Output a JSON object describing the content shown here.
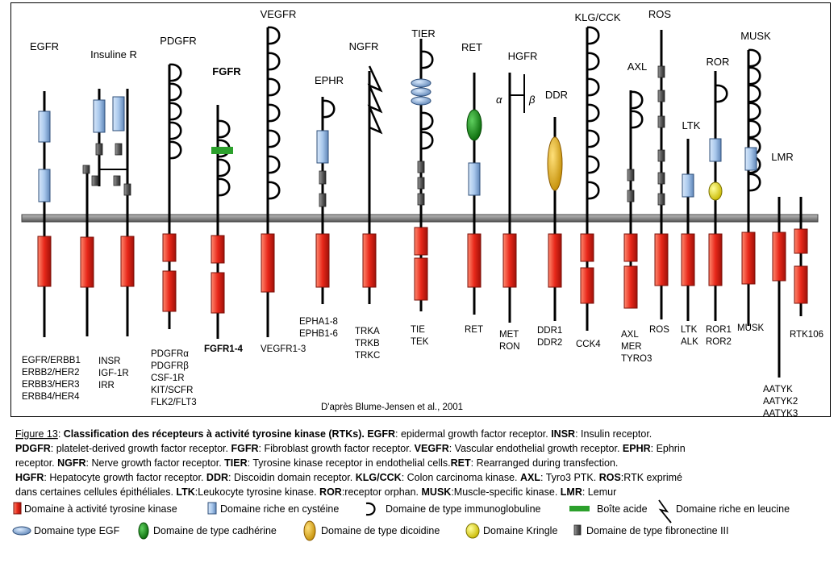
{
  "diagram": {
    "receptors": [
      {
        "name": "EGFR",
        "members": [
          "EGFR/ERBB1",
          "ERBB2/HER2",
          "ERBB3/HER3",
          "ERBB4/HER4"
        ]
      },
      {
        "name": "Insuline R",
        "members": [
          "INSR",
          "IGF-1R",
          "IRR"
        ]
      },
      {
        "name": "PDGFR",
        "members": [
          "PDGFRα",
          "PDGFRβ",
          "CSF-1R",
          "KIT/SCFR",
          "FLK2/FLT3"
        ]
      },
      {
        "name": "FGFR",
        "members": [
          "FGFR1-4"
        ]
      },
      {
        "name": "VEGFR",
        "members": [
          "VEGFR1-3"
        ]
      },
      {
        "name": "EPHR",
        "members": [
          "EPHA1-8",
          "EPHB1-6"
        ]
      },
      {
        "name": "NGFR",
        "members": [
          "TRKA",
          "TRKB",
          "TRKC"
        ]
      },
      {
        "name": "TIER",
        "members": [
          "TIE",
          "TEK"
        ]
      },
      {
        "name": "RET",
        "members": [
          "RET"
        ]
      },
      {
        "name": "HGFR",
        "members": [
          "MET",
          "RON"
        ]
      },
      {
        "name": "DDR",
        "members": [
          "DDR1",
          "DDR2"
        ]
      },
      {
        "name": "KLG/CCK",
        "members": [
          "CCK4"
        ]
      },
      {
        "name": "AXL",
        "members": [
          "AXL",
          "MER",
          "TYRO3"
        ]
      },
      {
        "name": "ROS",
        "members": [
          "ROS"
        ]
      },
      {
        "name": "LTK",
        "members": [
          "LTK",
          "ALK"
        ]
      },
      {
        "name": "ROR",
        "members": [
          "ROR1",
          "ROR2"
        ]
      },
      {
        "name": "MUSK",
        "members": [
          "MUSK"
        ]
      },
      {
        "name": "LMR",
        "members": [
          "AATYK",
          "AATYK2",
          "AATYK3"
        ]
      },
      {
        "name": "",
        "members": [
          "RTK106"
        ]
      }
    ],
    "alpha": "α",
    "beta": "β",
    "source": "D'après Blume-Jensen et al., 2001"
  },
  "caption": {
    "lines": [
      [
        {
          "t": "Figure 13",
          "u": true
        },
        {
          "t": ": "
        },
        {
          "t": "Classification des récepteurs à activité tyrosine kinase (RTKs). ",
          "b": true
        },
        {
          "t": "EGFR",
          "b": true
        },
        {
          "t": ": epidermal growth factor receptor. "
        },
        {
          "t": "INSR",
          "b": true
        },
        {
          "t": ": Insulin receptor."
        }
      ],
      [
        {
          "t": "PDGFR",
          "b": true
        },
        {
          "t": ": platelet-derived growth factor receptor. "
        },
        {
          "t": "FGFR",
          "b": true
        },
        {
          "t": ": Fibroblast growth factor receptor. "
        },
        {
          "t": "VEGFR",
          "b": true
        },
        {
          "t": ": Vascular endothelial growth receptor. "
        },
        {
          "t": "EPHR",
          "b": true
        },
        {
          "t": ": Ephrin"
        }
      ],
      [
        {
          "t": "receptor. "
        },
        {
          "t": "NGFR",
          "b": true
        },
        {
          "t": ": Nerve growth factor receptor. "
        },
        {
          "t": "TIER",
          "b": true
        },
        {
          "t": ": Tyrosine kinase receptor in endothelial cells."
        },
        {
          "t": "RET",
          "b": true
        },
        {
          "t": ": Rearranged during transfection."
        }
      ],
      [
        {
          "t": " "
        },
        {
          "t": "HGFR",
          "b": true
        },
        {
          "t": ": Hepatocyte growth factor receptor. "
        },
        {
          "t": "DDR",
          "b": true
        },
        {
          "t": ": Discoidin domain receptor. "
        },
        {
          "t": "KLG/CCK",
          "b": true
        },
        {
          "t": ": Colon carcinoma kinase. "
        },
        {
          "t": "AXL",
          "b": true
        },
        {
          "t": ": Tyro3 PTK. "
        },
        {
          "t": "ROS",
          "b": true
        },
        {
          "t": ":RTK exprimé"
        }
      ],
      [
        {
          "t": "dans certaines cellules épithéliales. "
        },
        {
          "t": "LTK",
          "b": true
        },
        {
          "t": ":Leukocyte tyrosine kinase. "
        },
        {
          "t": "ROR",
          "b": true
        },
        {
          "t": ":receptor orphan. "
        },
        {
          "t": "MUSK",
          "b": true
        },
        {
          "t": ":Muscle-specific kinase. "
        },
        {
          "t": "LMR",
          "b": true
        },
        {
          "t": ": Lemur"
        }
      ]
    ]
  },
  "legend": {
    "tyrosine_kinase": "Domaine à activité tyrosine kinase",
    "cysteine_rich": "Domaine riche en cystéine",
    "immunoglobulin": "Domaine de type immunoglobuline",
    "acid_box": "Boîte acide",
    "leucine_rich": "Domaine riche en leucine",
    "egf": "Domaine type EGF",
    "cadherin": "Domaine de type cadhérine",
    "discoidin": "Domaine de type dicoidine",
    "kringle": "Domaine Kringle",
    "fibronectin": "Domaine de type fibronectine III"
  },
  "colors": {
    "kinase": "#e8281a",
    "cysteine": "#a9c8ec",
    "membrane": "#8c8c8c",
    "acid_box": "#2ca02c",
    "egf": "#a9c8ec",
    "cadherin": "#1a8a1a",
    "discoidin": "#f0b400",
    "kringle": "#f2e600",
    "fibronectin": "#5a5a5a"
  }
}
